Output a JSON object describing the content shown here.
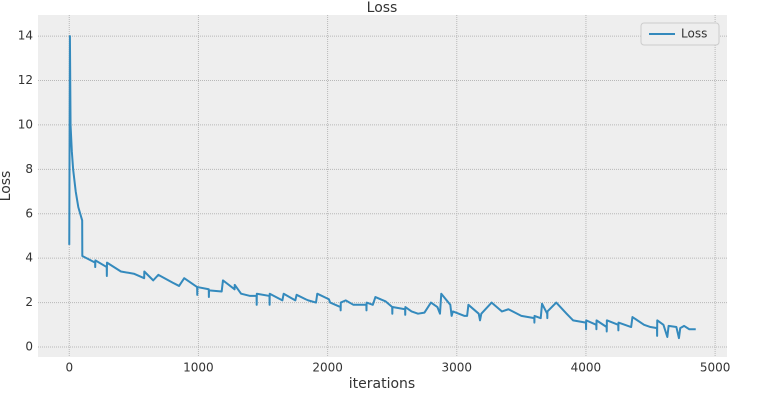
{
  "chart_data": {
    "type": "line",
    "title": "Loss",
    "x_label": "iterations",
    "y_label": "Loss",
    "x": [
      0,
      5,
      10,
      20,
      30,
      50,
      70,
      100,
      101,
      150,
      200,
      201,
      202,
      290,
      291,
      292,
      400,
      500,
      580,
      581,
      650,
      690,
      800,
      850,
      890,
      990,
      991,
      992,
      1080,
      1081,
      1082,
      1180,
      1190,
      1280,
      1281,
      1330,
      1400,
      1450,
      1451,
      1452,
      1550,
      1551,
      1552,
      1650,
      1660,
      1750,
      1760,
      1830,
      1850,
      1910,
      1920,
      2010,
      2020,
      2100,
      2101,
      2102,
      2140,
      2200,
      2300,
      2301,
      2302,
      2350,
      2370,
      2450,
      2500,
      2501,
      2502,
      2600,
      2601,
      2602,
      2650,
      2700,
      2750,
      2800,
      2850,
      2870,
      2880,
      2950,
      2960,
      2970,
      3060,
      3080,
      3090,
      3170,
      3180,
      3190,
      3270,
      3350,
      3400,
      3500,
      3600,
      3601,
      3602,
      3650,
      3660,
      3700,
      3701,
      3702,
      3770,
      3850,
      3900,
      4000,
      4001,
      4002,
      4080,
      4081,
      4082,
      4160,
      4161,
      4162,
      4250,
      4251,
      4252,
      4350,
      4360,
      4450,
      4500,
      4550,
      4551,
      4552,
      4600,
      4630,
      4640,
      4700,
      4720,
      4730,
      4760,
      4800,
      4850
    ],
    "series": [
      {
        "name": "Loss",
        "color": "#348abd",
        "values": [
          4.6,
          14.0,
          10.0,
          8.8,
          8.0,
          7.0,
          6.3,
          5.7,
          4.1,
          3.95,
          3.8,
          3.6,
          3.9,
          3.6,
          3.2,
          3.8,
          3.4,
          3.3,
          3.1,
          3.4,
          3.0,
          3.25,
          2.9,
          2.75,
          3.1,
          2.7,
          2.35,
          2.7,
          2.6,
          2.25,
          2.55,
          2.5,
          3.0,
          2.6,
          2.8,
          2.4,
          2.3,
          2.3,
          1.9,
          2.4,
          2.3,
          1.9,
          2.4,
          2.1,
          2.4,
          2.1,
          2.35,
          2.15,
          2.1,
          2.0,
          2.4,
          2.15,
          2.0,
          1.8,
          1.65,
          2.0,
          2.1,
          1.9,
          1.9,
          1.65,
          2.0,
          1.9,
          2.25,
          2.05,
          1.8,
          1.5,
          1.8,
          1.7,
          1.45,
          1.8,
          1.6,
          1.5,
          1.55,
          2.0,
          1.8,
          1.5,
          2.4,
          1.9,
          1.4,
          1.6,
          1.4,
          1.4,
          1.9,
          1.5,
          1.2,
          1.5,
          2.0,
          1.6,
          1.7,
          1.4,
          1.3,
          1.1,
          1.4,
          1.3,
          1.95,
          1.5,
          1.3,
          1.6,
          2.0,
          1.5,
          1.2,
          1.1,
          0.8,
          1.2,
          1.0,
          0.8,
          1.2,
          0.9,
          0.7,
          1.2,
          1.0,
          0.75,
          1.1,
          0.9,
          1.35,
          1.0,
          0.9,
          0.85,
          0.5,
          1.2,
          1.0,
          0.45,
          0.95,
          0.9,
          0.4,
          0.85,
          0.95,
          0.8,
          0.8
        ]
      }
    ],
    "xlim": [
      -242,
      5092
    ],
    "ylim": [
      -0.45,
      14.95
    ],
    "xticks": [
      0,
      1000,
      2000,
      3000,
      4000,
      5000
    ],
    "yticks": [
      0,
      2,
      4,
      6,
      8,
      10,
      12,
      14
    ],
    "grid": true,
    "legend": "upper right"
  }
}
